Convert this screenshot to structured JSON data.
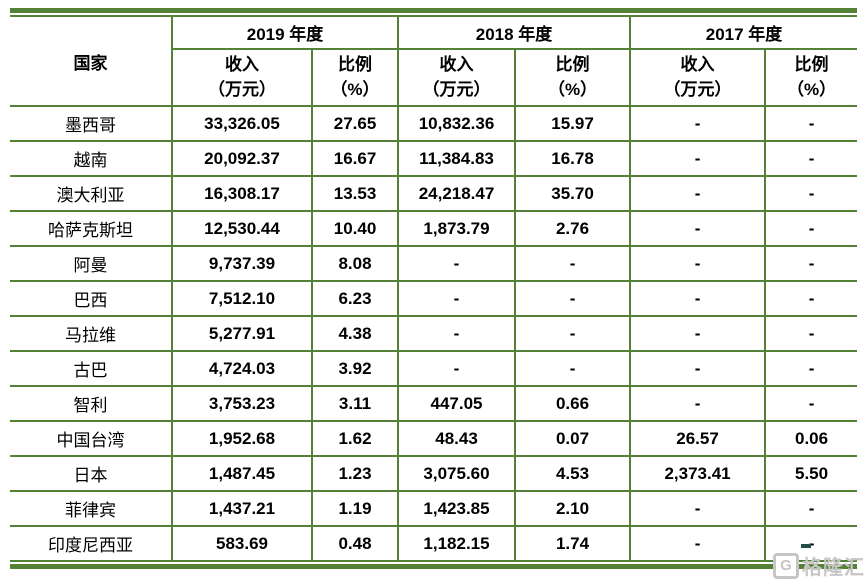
{
  "colors": {
    "border_green": "#538135",
    "text_black": "#000000",
    "watermark_gray": "#c6c6c6",
    "watermark_dash": "#234d4d"
  },
  "table": {
    "corner_label": "国家",
    "year_groups": [
      {
        "label": "2019 年度"
      },
      {
        "label": "2018 年度"
      },
      {
        "label": "2017 年度"
      }
    ],
    "income_header": "收入\n（万元）",
    "ratio_header": "比例\n（%）",
    "rows": [
      {
        "country": "墨西哥",
        "values": [
          "33,326.05",
          "27.65",
          "10,832.36",
          "15.97",
          "-",
          "-"
        ]
      },
      {
        "country": "越南",
        "values": [
          "20,092.37",
          "16.67",
          "11,384.83",
          "16.78",
          "-",
          "-"
        ]
      },
      {
        "country": "澳大利亚",
        "values": [
          "16,308.17",
          "13.53",
          "24,218.47",
          "35.70",
          "-",
          "-"
        ]
      },
      {
        "country": "哈萨克斯坦",
        "values": [
          "12,530.44",
          "10.40",
          "1,873.79",
          "2.76",
          "-",
          "-"
        ]
      },
      {
        "country": "阿曼",
        "values": [
          "9,737.39",
          "8.08",
          "-",
          "-",
          "-",
          "-"
        ]
      },
      {
        "country": "巴西",
        "values": [
          "7,512.10",
          "6.23",
          "-",
          "-",
          "-",
          "-"
        ]
      },
      {
        "country": "马拉维",
        "values": [
          "5,277.91",
          "4.38",
          "-",
          "-",
          "-",
          "-"
        ]
      },
      {
        "country": "古巴",
        "values": [
          "4,724.03",
          "3.92",
          "-",
          "-",
          "-",
          "-"
        ]
      },
      {
        "country": "智利",
        "values": [
          "3,753.23",
          "3.11",
          "447.05",
          "0.66",
          "-",
          "-"
        ]
      },
      {
        "country": "中国台湾",
        "values": [
          "1,952.68",
          "1.62",
          "48.43",
          "0.07",
          "26.57",
          "0.06"
        ]
      },
      {
        "country": "日本",
        "values": [
          "1,487.45",
          "1.23",
          "3,075.60",
          "4.53",
          "2,373.41",
          "5.50"
        ]
      },
      {
        "country": "菲律宾",
        "values": [
          "1,437.21",
          "1.19",
          "1,423.85",
          "2.10",
          "-",
          "-"
        ]
      },
      {
        "country": "印度尼西亚",
        "values": [
          "583.69",
          "0.48",
          "1,182.15",
          "1.74",
          "-",
          "-"
        ]
      }
    ]
  },
  "watermark": {
    "icon": "gelonghui-logo",
    "icon_letter": "G",
    "text": "格隆汇"
  }
}
